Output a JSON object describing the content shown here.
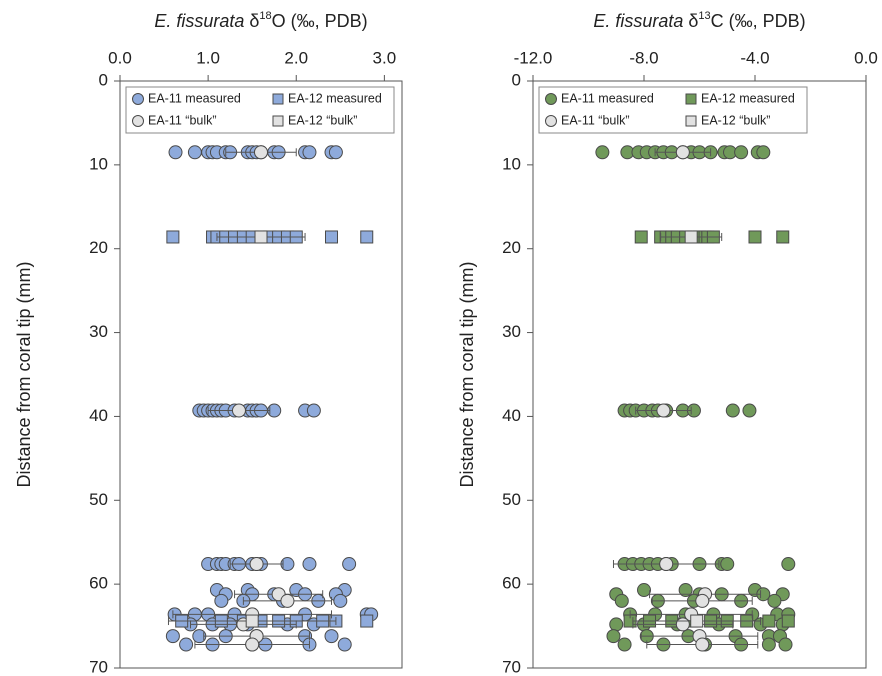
{
  "chart_data": [
    {
      "type": "scatter",
      "title": [
        {
          "text": "E. fissurata",
          "style": "italic"
        },
        {
          "text": " δ",
          "style": "normal"
        },
        {
          "text": "18",
          "style": "super"
        },
        {
          "text": "O (‰, PDB)",
          "style": "normal"
        }
      ],
      "ylabel": "Distance from coral tip (mm)",
      "xlim": [
        0,
        3.2
      ],
      "ylim": [
        0,
        70
      ],
      "y_inverted": true,
      "x_axis_position": "top",
      "grid": false,
      "xticks": [
        {
          "value": 0,
          "label": "0.0"
        },
        {
          "value": 1,
          "label": "1.0"
        },
        {
          "value": 2,
          "label": "2.0"
        },
        {
          "value": 3,
          "label": "3.0"
        }
      ],
      "yticks": [
        0,
        10,
        20,
        30,
        40,
        50,
        60,
        70
      ],
      "legend": "top",
      "series": [
        {
          "name": "EA-11 measured",
          "marker": "circle",
          "color": "#8eaadb",
          "x": [
            0.63,
            0.85,
            1.0,
            1.05,
            1.1,
            1.2,
            1.25,
            1.45,
            1.5,
            1.55,
            1.6,
            1.75,
            1.8,
            2.1,
            2.15,
            2.4,
            2.45,
            0.9,
            0.95,
            1.0,
            1.05,
            1.1,
            1.15,
            1.2,
            1.3,
            1.45,
            1.5,
            1.55,
            1.6,
            1.75,
            2.1,
            2.2,
            1.0,
            1.1,
            1.15,
            1.2,
            1.3,
            1.35,
            1.5,
            1.55,
            1.6,
            1.9,
            2.15,
            2.6,
            1.1,
            1.45,
            2.0,
            2.55,
            1.2,
            1.5,
            1.75,
            2.1,
            2.45,
            1.15,
            1.4,
            1.85,
            2.25,
            2.5,
            0.62,
            0.85,
            1.0,
            1.3,
            2.1,
            2.8,
            2.85,
            0.8,
            1.05,
            1.25,
            1.45,
            1.9,
            2.2,
            0.6,
            0.9,
            1.2,
            1.55,
            2.1,
            2.4,
            0.75,
            1.05,
            1.5,
            1.65,
            2.15,
            2.55
          ],
          "y": [
            8.5,
            8.5,
            8.5,
            8.5,
            8.5,
            8.5,
            8.5,
            8.5,
            8.5,
            8.5,
            8.5,
            8.5,
            8.5,
            8.5,
            8.5,
            8.5,
            8.5,
            39.3,
            39.3,
            39.3,
            39.3,
            39.3,
            39.3,
            39.3,
            39.3,
            39.3,
            39.3,
            39.3,
            39.3,
            39.3,
            39.3,
            39.3,
            57.6,
            57.6,
            57.6,
            57.6,
            57.6,
            57.6,
            57.6,
            57.6,
            57.6,
            57.6,
            57.6,
            57.6,
            60.7,
            60.7,
            60.7,
            60.7,
            61.2,
            61.2,
            61.2,
            61.2,
            61.2,
            62.0,
            62.0,
            62.0,
            62.0,
            62.0,
            63.6,
            63.6,
            63.6,
            63.6,
            63.6,
            63.6,
            63.6,
            64.8,
            64.8,
            64.8,
            64.8,
            64.8,
            64.8,
            66.2,
            66.2,
            66.2,
            66.2,
            66.2,
            66.2,
            67.2,
            67.2,
            67.2,
            67.2,
            67.2,
            67.2
          ]
        },
        {
          "name": "EA-12 measured",
          "marker": "square",
          "color": "#8eaadb",
          "x": [
            0.6,
            1.05,
            1.1,
            1.2,
            1.3,
            1.4,
            1.5,
            1.6,
            1.7,
            1.8,
            1.9,
            2.0,
            2.4,
            2.8,
            0.7,
            1.15,
            1.4,
            1.6,
            1.8,
            2.0,
            2.3,
            2.45,
            2.8
          ],
          "y": [
            18.6,
            18.6,
            18.6,
            18.6,
            18.6,
            18.6,
            18.6,
            18.6,
            18.6,
            18.6,
            18.6,
            18.6,
            18.6,
            18.6,
            64.4,
            64.4,
            64.4,
            64.4,
            64.4,
            64.4,
            64.4,
            64.4,
            64.4
          ]
        },
        {
          "name": "EA-11 “bulk”",
          "marker": "circle",
          "color": "#e2e2e2",
          "x": [
            1.6,
            1.35,
            1.55,
            1.8,
            1.9,
            1.5,
            1.4,
            1.55,
            1.5
          ],
          "y": [
            8.5,
            39.3,
            57.6,
            61.2,
            62.0,
            63.6,
            64.8,
            66.2,
            67.2
          ],
          "xerr": [
            0.4,
            0.35,
            0.3,
            0.5,
            0.5,
            0.9,
            0.6,
            0.6,
            0.65
          ]
        },
        {
          "name": "EA-12 “bulk”",
          "marker": "square",
          "color": "#e2e2e2",
          "x": [
            1.6,
            1.5
          ],
          "y": [
            18.6,
            64.4
          ],
          "xerr": [
            0.5,
            0.95
          ]
        }
      ]
    },
    {
      "type": "scatter",
      "title": [
        {
          "text": "E. fissurata",
          "style": "italic"
        },
        {
          "text": " δ",
          "style": "normal"
        },
        {
          "text": "13",
          "style": "super"
        },
        {
          "text": "C (‰, PDB)",
          "style": "normal"
        }
      ],
      "ylabel": "Distance from coral tip (mm)",
      "xlim": [
        -12,
        0
      ],
      "ylim": [
        0,
        70
      ],
      "y_inverted": true,
      "x_axis_position": "top",
      "grid": false,
      "xticks": [
        {
          "value": -12,
          "label": "-12.0"
        },
        {
          "value": -8,
          "label": "-8.0"
        },
        {
          "value": -4,
          "label": "-4.0"
        },
        {
          "value": 0,
          "label": "0.0"
        }
      ],
      "yticks": [
        0,
        10,
        20,
        30,
        40,
        50,
        60,
        70
      ],
      "legend": "top",
      "series": [
        {
          "name": "EA-11 measured",
          "marker": "circle",
          "color": "#70995a",
          "x": [
            -9.5,
            -8.6,
            -8.2,
            -7.9,
            -7.6,
            -7.3,
            -7.0,
            -6.6,
            -6.3,
            -6.0,
            -5.6,
            -5.1,
            -4.9,
            -4.5,
            -3.9,
            -3.7,
            -8.7,
            -8.5,
            -8.3,
            -8.0,
            -7.7,
            -7.5,
            -7.2,
            -6.6,
            -6.2,
            -4.8,
            -4.2,
            -8.7,
            -8.4,
            -8.1,
            -7.8,
            -7.5,
            -7.2,
            -7.0,
            -6.0,
            -5.2,
            -5.0,
            -2.8,
            -8.0,
            -6.5,
            -4.0,
            -9.0,
            -6.0,
            -5.2,
            -3.7,
            -3.0,
            -8.8,
            -7.5,
            -6.2,
            -4.5,
            -3.3,
            -8.5,
            -7.6,
            -6.5,
            -5.5,
            -4.1,
            -3.2,
            -2.8,
            -9.0,
            -8.0,
            -6.8,
            -5.3,
            -3.8,
            -3.0,
            -9.1,
            -7.9,
            -6.4,
            -4.7,
            -3.5,
            -3.1,
            -8.7,
            -7.3,
            -5.8,
            -4.5,
            -3.5,
            -2.9
          ],
          "y": [
            8.5,
            8.5,
            8.5,
            8.5,
            8.5,
            8.5,
            8.5,
            8.5,
            8.5,
            8.5,
            8.5,
            8.5,
            8.5,
            8.5,
            8.5,
            8.5,
            39.3,
            39.3,
            39.3,
            39.3,
            39.3,
            39.3,
            39.3,
            39.3,
            39.3,
            39.3,
            39.3,
            57.6,
            57.6,
            57.6,
            57.6,
            57.6,
            57.6,
            57.6,
            57.6,
            57.6,
            57.6,
            57.6,
            60.7,
            60.7,
            60.7,
            61.2,
            61.2,
            61.2,
            61.2,
            61.2,
            62.0,
            62.0,
            62.0,
            62.0,
            62.0,
            63.6,
            63.6,
            63.6,
            63.6,
            63.6,
            63.6,
            63.6,
            64.8,
            64.8,
            64.8,
            64.8,
            64.8,
            64.8,
            66.2,
            66.2,
            66.2,
            66.2,
            66.2,
            66.2,
            67.2,
            67.2,
            67.2,
            67.2,
            67.2,
            67.2
          ]
        },
        {
          "name": "EA-12 measured",
          "marker": "square",
          "color": "#70995a",
          "x": [
            -8.1,
            -7.4,
            -7.2,
            -7.0,
            -6.8,
            -6.5,
            -6.2,
            -6.0,
            -5.8,
            -5.7,
            -5.5,
            -4.0,
            -3.0,
            -8.5,
            -7.8,
            -7.0,
            -6.3,
            -5.6,
            -5.0,
            -4.3,
            -3.5,
            -2.8
          ],
          "y": [
            18.6,
            18.6,
            18.6,
            18.6,
            18.6,
            18.6,
            18.6,
            18.6,
            18.6,
            18.6,
            18.6,
            18.6,
            18.6,
            64.4,
            64.4,
            64.4,
            64.4,
            64.4,
            64.4,
            64.4,
            64.4,
            64.4
          ]
        },
        {
          "name": "EA-11 “bulk”",
          "marker": "circle",
          "color": "#e2e2e2",
          "x": [
            -6.6,
            -7.3,
            -7.2,
            -5.8,
            -5.9,
            -6.3,
            -6.6,
            -6.0,
            -5.9
          ],
          "y": [
            8.5,
            39.3,
            57.6,
            61.2,
            62.0,
            63.6,
            64.8,
            66.2,
            67.2
          ],
          "xerr": [
            1.0,
            1.0,
            1.9,
            2.0,
            1.8,
            2.2,
            1.8,
            2.1,
            2.0
          ]
        },
        {
          "name": "EA-12 “bulk”",
          "marker": "square",
          "color": "#e2e2e2",
          "x": [
            -6.3,
            -6.1
          ],
          "y": [
            18.6,
            64.4
          ],
          "xerr": [
            1.1,
            2.3
          ]
        }
      ]
    }
  ]
}
